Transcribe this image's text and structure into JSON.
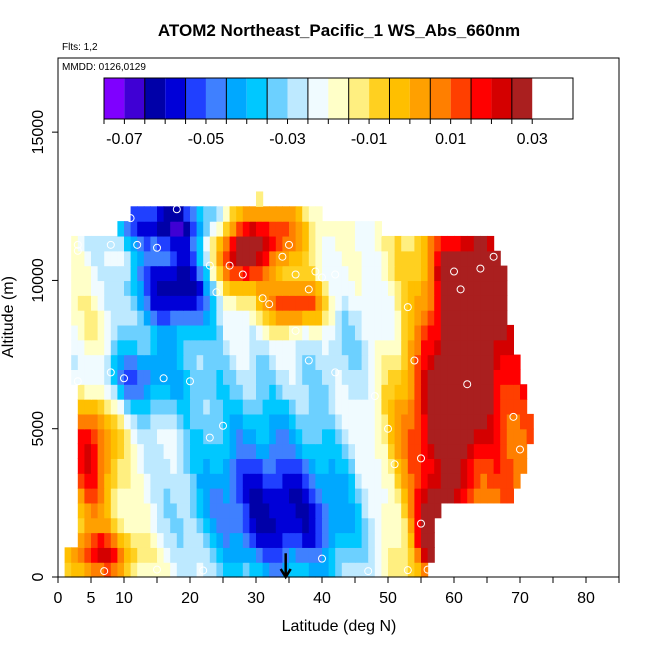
{
  "chart_data": {
    "type": "heatmap",
    "title": "ATOM2 Northeast_Pacific_1 WS_Abs_660nm",
    "annotations": [
      "Flts: 1,2",
      "MMDD: 0126,0129"
    ],
    "xlabel": "Latitude (deg N)",
    "ylabel": "Altitude (m)",
    "xlim": [
      0,
      85
    ],
    "ylim": [
      0,
      17500
    ],
    "x_ticks": [
      0,
      5,
      10,
      20,
      30,
      40,
      50,
      60,
      70,
      80
    ],
    "x_minor_ticks": [
      15,
      25,
      35,
      45,
      55,
      65,
      75,
      85
    ],
    "y_ticks": [
      0,
      5000,
      10000,
      15000
    ],
    "colorbar": {
      "range": [
        -0.075,
        0.04
      ],
      "step": 0.005,
      "tick_values": [
        -0.07,
        -0.05,
        -0.03,
        -0.01,
        0.01,
        0.03
      ],
      "tick_labels": [
        "-0.07",
        "-0.05",
        "-0.03",
        "-0.01",
        "0.01",
        "0.03"
      ],
      "colors": [
        "#7f00ff",
        "#3f00d4",
        "#0000a8",
        "#0000d8",
        "#2040ff",
        "#3f80ff",
        "#00a8ff",
        "#00c8ff",
        "#6cd0ff",
        "#bde9ff",
        "#f0fbff",
        "#ffffc8",
        "#ffef80",
        "#ffd020",
        "#ffbf00",
        "#ffa000",
        "#ff7f00",
        "#ff3f00",
        "#ff0000",
        "#d40000",
        "#aa1f1f"
      ]
    },
    "z_description": "WS_Abs_660nm",
    "grid": {
      "lat_min": 1,
      "lat_max": 72,
      "lat_step": 1,
      "alt_step": 500,
      "extent": [
        [
          0,
          1,
          56
        ],
        [
          500,
          1,
          57
        ],
        [
          1000,
          3,
          57
        ],
        [
          1500,
          3,
          57
        ],
        [
          2000,
          3,
          58
        ],
        [
          2500,
          3,
          69
        ],
        [
          3000,
          3,
          70
        ],
        [
          3500,
          3,
          71
        ],
        [
          4000,
          3,
          71
        ],
        [
          4500,
          3,
          72
        ],
        [
          5000,
          3,
          72
        ],
        [
          5500,
          3,
          71
        ],
        [
          6000,
          3,
          71
        ],
        [
          6500,
          2,
          70
        ],
        [
          7000,
          2,
          70
        ],
        [
          7500,
          2,
          69
        ],
        [
          8000,
          2,
          69
        ],
        [
          8500,
          2,
          68
        ],
        [
          9000,
          2,
          68
        ],
        [
          9500,
          2,
          68
        ],
        [
          10000,
          2,
          68
        ],
        [
          10500,
          2,
          67
        ],
        [
          11000,
          2,
          66
        ],
        [
          11500,
          9,
          49
        ],
        [
          12000,
          11,
          40
        ],
        [
          12500,
          30,
          31
        ]
      ],
      "features": [
        {
          "lat": 35,
          "alt": 1800,
          "slat": 12,
          "salt": 2200,
          "value": -0.045
        },
        {
          "lat": 30,
          "alt": 4000,
          "slat": 12,
          "salt": 3000,
          "value": -0.035
        },
        {
          "lat": 18,
          "alt": 9800,
          "slat": 7,
          "salt": 1600,
          "value": -0.06
        },
        {
          "lat": 16,
          "alt": 12000,
          "slat": 8,
          "salt": 800,
          "value": -0.055
        },
        {
          "lat": 10,
          "alt": 6700,
          "slat": 10,
          "salt": 1200,
          "value": -0.045
        },
        {
          "lat": 45,
          "alt": 8200,
          "slat": 8,
          "salt": 2000,
          "value": -0.025
        },
        {
          "lat": 27,
          "alt": 10800,
          "slat": 4,
          "salt": 1300,
          "value": 0.035
        },
        {
          "lat": 33,
          "alt": 11500,
          "slat": 5,
          "salt": 1200,
          "value": 0.02
        },
        {
          "lat": 36,
          "alt": 9200,
          "slat": 5,
          "salt": 800,
          "value": 0.025
        },
        {
          "lat": 62,
          "alt": 9000,
          "slat": 6,
          "salt": 3500,
          "value": 0.025
        },
        {
          "lat": 63,
          "alt": 10300,
          "slat": 4,
          "salt": 500,
          "value": 0.032
        },
        {
          "lat": 58,
          "alt": 5000,
          "slat": 7,
          "salt": 3000,
          "value": 0.018
        },
        {
          "lat": 57,
          "alt": 1500,
          "slat": 3,
          "salt": 1500,
          "value": 0.03
        },
        {
          "lat": 5,
          "alt": 4500,
          "slat": 4,
          "salt": 3000,
          "value": 0.025
        },
        {
          "lat": 7,
          "alt": 700,
          "slat": 5,
          "salt": 800,
          "value": 0.02
        }
      ]
    },
    "points": [
      [
        7,
        200
      ],
      [
        15,
        250
      ],
      [
        22,
        220
      ],
      [
        47,
        200
      ],
      [
        53,
        230
      ],
      [
        56,
        250
      ],
      [
        40,
        620
      ],
      [
        70,
        600
      ],
      [
        55,
        1800
      ],
      [
        51,
        3800
      ],
      [
        55,
        4000
      ],
      [
        23,
        4700
      ],
      [
        25,
        5100
      ],
      [
        50,
        5000
      ],
      [
        70,
        4300
      ],
      [
        69,
        5400
      ],
      [
        3,
        6600
      ],
      [
        10,
        6700
      ],
      [
        16,
        6700
      ],
      [
        20,
        6600
      ],
      [
        8,
        6900
      ],
      [
        54,
        7300
      ],
      [
        42,
        6900
      ],
      [
        38,
        7300
      ],
      [
        62,
        6500
      ],
      [
        48,
        6100
      ],
      [
        36,
        8300
      ],
      [
        53,
        9100
      ],
      [
        32,
        9200
      ],
      [
        24,
        9600
      ],
      [
        31,
        9400
      ],
      [
        38,
        9700
      ],
      [
        40,
        10100
      ],
      [
        39,
        10300
      ],
      [
        42,
        10200
      ],
      [
        36,
        10200
      ],
      [
        26,
        10500
      ],
      [
        23,
        10500
      ],
      [
        28,
        10200
      ],
      [
        60,
        10300
      ],
      [
        64,
        10400
      ],
      [
        61,
        9700
      ],
      [
        66,
        10800
      ],
      [
        3,
        11200
      ],
      [
        8,
        11200
      ],
      [
        12,
        11200
      ],
      [
        15,
        11100
      ],
      [
        11,
        12100
      ],
      [
        18,
        12400
      ],
      [
        3,
        11000
      ],
      [
        35,
        11200
      ],
      [
        34,
        10800
      ]
    ],
    "arrow": {
      "lat": 34.5,
      "alt_from": 800,
      "alt_to": 0
    }
  }
}
